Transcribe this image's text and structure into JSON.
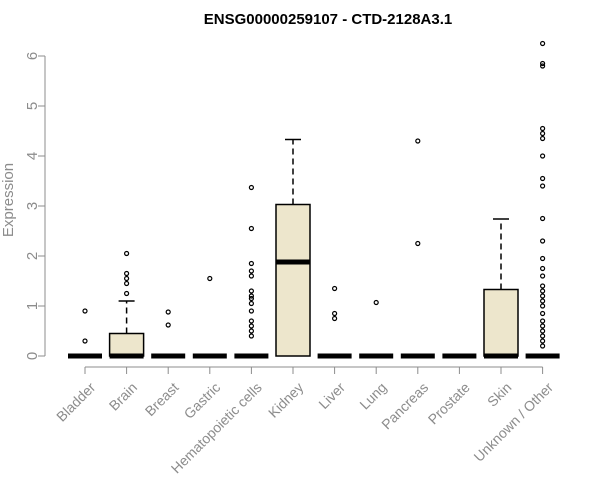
{
  "chart_data": {
    "type": "boxplot",
    "title": "ENSG00000259107 - CTD-2128A3.1",
    "xlabel": "",
    "ylabel": "Expression",
    "ylim": [
      0,
      6.3
    ],
    "yticks": [
      0,
      1,
      2,
      3,
      4,
      5,
      6
    ],
    "grid": false,
    "box_fill": "#ede6cc",
    "box_stroke": "#000000",
    "categories": [
      "Bladder",
      "Brain",
      "Breast",
      "Gastric",
      "Hematopoietic cells",
      "Kidney",
      "Liver",
      "Lung",
      "Pancreas",
      "Prostate",
      "Skin",
      "Unknown / Other"
    ],
    "boxes": [
      {
        "category": "Bladder",
        "min": 0,
        "q1": 0,
        "median": 0,
        "q3": 0,
        "max": 0,
        "outliers": [
          0.3,
          0.9
        ]
      },
      {
        "category": "Brain",
        "min": 0,
        "q1": 0,
        "median": 0,
        "q3": 0.45,
        "max": 1.1,
        "outliers": [
          1.25,
          1.45,
          1.55,
          1.65,
          2.05
        ]
      },
      {
        "category": "Breast",
        "min": 0,
        "q1": 0,
        "median": 0,
        "q3": 0,
        "max": 0,
        "outliers": [
          0.62,
          0.88
        ]
      },
      {
        "category": "Gastric",
        "min": 0,
        "q1": 0,
        "median": 0,
        "q3": 0,
        "max": 0,
        "outliers": [
          1.55
        ]
      },
      {
        "category": "Hematopoietic cells",
        "min": 0,
        "q1": 0,
        "median": 0,
        "q3": 0,
        "max": 0,
        "outliers": [
          0.4,
          0.5,
          0.6,
          0.7,
          0.9,
          1.05,
          1.15,
          1.2,
          1.3,
          1.6,
          1.7,
          1.85,
          2.55,
          3.37
        ]
      },
      {
        "category": "Kidney",
        "min": 0,
        "q1": 0,
        "median": 1.88,
        "q3": 3.03,
        "max": 4.33,
        "outliers": []
      },
      {
        "category": "Liver",
        "min": 0,
        "q1": 0,
        "median": 0,
        "q3": 0,
        "max": 0,
        "outliers": [
          0.75,
          0.85,
          1.35
        ]
      },
      {
        "category": "Lung",
        "min": 0,
        "q1": 0,
        "median": 0,
        "q3": 0,
        "max": 0,
        "outliers": [
          1.07
        ]
      },
      {
        "category": "Pancreas",
        "min": 0,
        "q1": 0,
        "median": 0,
        "q3": 0,
        "max": 0,
        "outliers": [
          2.25,
          4.3
        ]
      },
      {
        "category": "Prostate",
        "min": 0,
        "q1": 0,
        "median": 0,
        "q3": 0,
        "max": 0,
        "outliers": []
      },
      {
        "category": "Skin",
        "min": 0,
        "q1": 0,
        "median": 0,
        "q3": 1.33,
        "max": 2.74,
        "outliers": []
      },
      {
        "category": "Unknown / Other",
        "min": 0,
        "q1": 0,
        "median": 0,
        "q3": 0,
        "max": 0,
        "outliers": [
          0.2,
          0.3,
          0.4,
          0.5,
          0.6,
          0.7,
          0.85,
          1.0,
          1.1,
          1.2,
          1.3,
          1.4,
          1.6,
          1.75,
          1.95,
          2.3,
          2.75,
          3.4,
          3.55,
          4.0,
          4.35,
          4.45,
          4.55,
          5.8,
          5.85,
          6.25
        ]
      }
    ]
  }
}
